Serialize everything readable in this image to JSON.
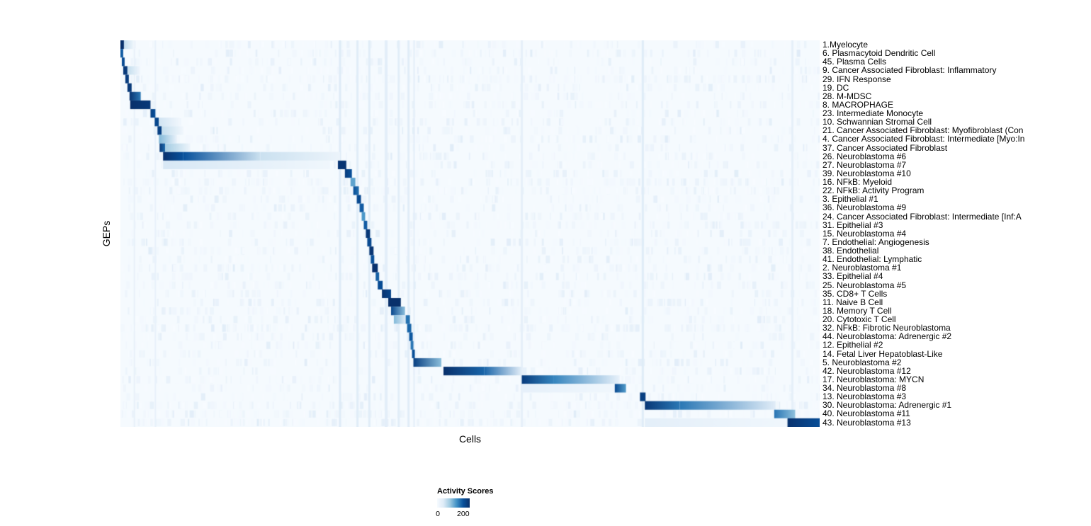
{
  "chart_data": {
    "type": "heatmap",
    "xlabel": "Cells",
    "ylabel": "GEPs",
    "value_range": [
      0,
      250
    ],
    "colormap_stops": [
      [
        0,
        "#f7fbff"
      ],
      [
        50,
        "#deebf7"
      ],
      [
        100,
        "#9ecae1"
      ],
      [
        150,
        "#4292c6"
      ],
      [
        200,
        "#08519c"
      ],
      [
        250,
        "#08306b"
      ]
    ],
    "background_value": 4,
    "legend": {
      "title": "Activity Scores",
      "tick_labels": [
        "0",
        "200"
      ],
      "tick_values": [
        0,
        200
      ]
    },
    "noise": {
      "seed": 1337,
      "dashes_per_row": 110,
      "max_value": 48
    },
    "column_streaks": [
      {
        "x": 0.02,
        "w": 2,
        "v": 30
      },
      {
        "x": 0.05,
        "w": 2,
        "v": 28
      },
      {
        "x": 0.314,
        "w": 3,
        "v": 50
      },
      {
        "x": 0.339,
        "w": 3,
        "v": 45
      },
      {
        "x": 0.356,
        "w": 3,
        "v": 45
      },
      {
        "x": 0.38,
        "w": 4,
        "v": 40
      },
      {
        "x": 0.398,
        "w": 3,
        "v": 42
      },
      {
        "x": 0.412,
        "w": 3,
        "v": 45
      },
      {
        "x": 0.42,
        "w": 2,
        "v": 40
      },
      {
        "x": 0.574,
        "w": 3,
        "v": 35
      },
      {
        "x": 0.747,
        "w": 3,
        "v": 48
      },
      {
        "x": 0.961,
        "w": 3,
        "v": 35
      }
    ],
    "rows": [
      {
        "label": "1.Myelocyte",
        "blocks": [
          [
            0.0,
            0.005,
            250,
            250
          ],
          [
            0.005,
            0.02,
            70,
            10
          ]
        ]
      },
      {
        "label": "6. Plasmacytoid Dendritic Cell",
        "blocks": [
          [
            0.0,
            0.004,
            190,
            190
          ]
        ]
      },
      {
        "label": "45. Plasma Cells",
        "blocks": [
          [
            0.002,
            0.006,
            210,
            210
          ]
        ]
      },
      {
        "label": "9. Cancer Associated Fibroblast: Inflammatory",
        "blocks": [
          [
            0.004,
            0.01,
            235,
            235
          ],
          [
            0.01,
            0.028,
            70,
            15
          ]
        ]
      },
      {
        "label": "29. IFN Response",
        "noise": 2,
        "blocks": [
          [
            0.007,
            0.012,
            230,
            230
          ]
        ]
      },
      {
        "label": "19. DC",
        "blocks": [
          [
            0.01,
            0.016,
            235,
            235
          ]
        ]
      },
      {
        "label": "28. M-MDSC",
        "blocks": [
          [
            0.013,
            0.029,
            245,
            170
          ]
        ]
      },
      {
        "label": "8. MACROPHAGE",
        "blocks": [
          [
            0.014,
            0.043,
            250,
            235
          ]
        ]
      },
      {
        "label": "23. Intermediate Monocyte",
        "blocks": [
          [
            0.043,
            0.05,
            225,
            200
          ]
        ]
      },
      {
        "label": "10. Schwannian Stromal Cell",
        "blocks": [
          [
            0.049,
            0.055,
            215,
            215
          ],
          [
            0.055,
            0.085,
            60,
            12
          ]
        ]
      },
      {
        "label": "21. Cancer Associated Fibroblast: Myofibroblast (Con",
        "blocks": [
          [
            0.053,
            0.059,
            225,
            225
          ],
          [
            0.059,
            0.09,
            70,
            12
          ]
        ]
      },
      {
        "label": "4. Cancer Associated Fibroblast: Intermediate [Myo:In",
        "blocks": [
          [
            0.055,
            0.081,
            115,
            25
          ]
        ]
      },
      {
        "label": "37. Cancer Associated Fibroblast",
        "blocks": [
          [
            0.056,
            0.064,
            235,
            180
          ],
          [
            0.064,
            0.1,
            95,
            18
          ]
        ]
      },
      {
        "label": "26. Neuroblastoma #6",
        "blocks": [
          [
            0.061,
            0.09,
            248,
            200
          ],
          [
            0.09,
            0.2,
            200,
            65
          ],
          [
            0.2,
            0.314,
            65,
            22
          ]
        ]
      },
      {
        "label": "27. Neuroblastoma #7",
        "blocks": [
          [
            0.061,
            0.3,
            55,
            14
          ],
          [
            0.311,
            0.323,
            242,
            242
          ]
        ]
      },
      {
        "label": "39. Neuroblastoma #10",
        "blocks": [
          [
            0.321,
            0.331,
            232,
            200
          ]
        ]
      },
      {
        "label": "16. NFkB: Myeloid",
        "noise": 2,
        "blocks": [
          [
            0.329,
            0.336,
            135,
            135
          ]
        ]
      },
      {
        "label": "22. NFkB: Activity Program",
        "noise": 1.6,
        "blocks": [
          [
            0.333,
            0.341,
            205,
            175
          ]
        ]
      },
      {
        "label": "3. Epithelial #1",
        "blocks": [
          [
            0.338,
            0.344,
            212,
            212
          ]
        ]
      },
      {
        "label": "36. Neuroblastoma #9",
        "blocks": [
          [
            0.342,
            0.348,
            192,
            192
          ]
        ]
      },
      {
        "label": "24. Cancer Associated Fibroblast: Intermediate [Inf:A",
        "blocks": [
          [
            0.345,
            0.35,
            145,
            145
          ]
        ]
      },
      {
        "label": "31. Epithelial #3",
        "blocks": [
          [
            0.348,
            0.353,
            192,
            192
          ]
        ]
      },
      {
        "label": "15. Neuroblastoma #4",
        "blocks": [
          [
            0.351,
            0.357,
            238,
            238
          ]
        ]
      },
      {
        "label": "7. Endothelial: Angiogenesis",
        "blocks": [
          [
            0.353,
            0.359,
            212,
            212
          ]
        ]
      },
      {
        "label": "38. Endothelial",
        "blocks": [
          [
            0.356,
            0.362,
            242,
            242
          ]
        ]
      },
      {
        "label": "41. Endothelial: Lymphatic",
        "blocks": [
          [
            0.358,
            0.363,
            202,
            202
          ]
        ]
      },
      {
        "label": "2. Neuroblastoma #1",
        "blocks": [
          [
            0.36,
            0.368,
            250,
            245
          ]
        ]
      },
      {
        "label": "33. Epithelial #4",
        "blocks": [
          [
            0.365,
            0.37,
            188,
            188
          ]
        ]
      },
      {
        "label": "25. Neuroblastoma #5",
        "blocks": [
          [
            0.368,
            0.375,
            208,
            208
          ]
        ]
      },
      {
        "label": "35. CD8+ T Cells",
        "blocks": [
          [
            0.374,
            0.387,
            246,
            215
          ]
        ]
      },
      {
        "label": "11. Naive B Cell",
        "blocks": [
          [
            0.383,
            0.401,
            250,
            250
          ]
        ]
      },
      {
        "label": "18. Memory T Cell",
        "blocks": [
          [
            0.387,
            0.407,
            215,
            110
          ]
        ]
      },
      {
        "label": "20. Cytotoxic T Cell",
        "blocks": [
          [
            0.391,
            0.408,
            115,
            45
          ],
          [
            0.408,
            0.414,
            175,
            175
          ]
        ]
      },
      {
        "label": "32. NFkB: Fibrotic Neuroblastoma",
        "noise": 2,
        "blocks": [
          [
            0.41,
            0.416,
            185,
            185
          ]
        ]
      },
      {
        "label": "44. Neuroblastoma: Adrenergic #2",
        "blocks": [
          [
            0.413,
            0.418,
            195,
            195
          ]
        ]
      },
      {
        "label": "12. Epithelial #2",
        "blocks": [
          [
            0.415,
            0.419,
            172,
            172
          ]
        ]
      },
      {
        "label": "14. Fetal Liver Hepatoblast-Like",
        "blocks": [
          [
            0.417,
            0.421,
            205,
            205
          ]
        ]
      },
      {
        "label": "5. Neuroblastoma #2",
        "blocks": [
          [
            0.419,
            0.459,
            228,
            110
          ]
        ]
      },
      {
        "label": "42. Neuroblastoma #12",
        "blocks": [
          [
            0.462,
            0.52,
            250,
            185
          ],
          [
            0.52,
            0.574,
            185,
            38
          ]
        ]
      },
      {
        "label": "17. Neuroblastoma: MYCN",
        "blocks": [
          [
            0.574,
            0.62,
            232,
            160
          ],
          [
            0.62,
            0.714,
            160,
            28
          ]
        ]
      },
      {
        "label": "34. Neuroblastoma #8",
        "blocks": [
          [
            0.574,
            0.707,
            34,
            14
          ],
          [
            0.707,
            0.723,
            212,
            140
          ]
        ]
      },
      {
        "label": "13. Neuroblastoma #3",
        "blocks": [
          [
            0.743,
            0.751,
            228,
            228
          ]
        ]
      },
      {
        "label": "30. Neuroblastoma: Adrenergic #1",
        "noise": 1.8,
        "blocks": [
          [
            0.75,
            0.8,
            238,
            170
          ],
          [
            0.8,
            0.937,
            170,
            45
          ]
        ]
      },
      {
        "label": "40. Neuroblastoma #11",
        "noise": 1.6,
        "blocks": [
          [
            0.935,
            0.965,
            172,
            108
          ]
        ]
      },
      {
        "label": "43. Neuroblastoma #13",
        "noise": 1.8,
        "blocks": [
          [
            0.75,
            0.954,
            38,
            14
          ],
          [
            0.954,
            1.0,
            246,
            205
          ]
        ]
      }
    ]
  }
}
